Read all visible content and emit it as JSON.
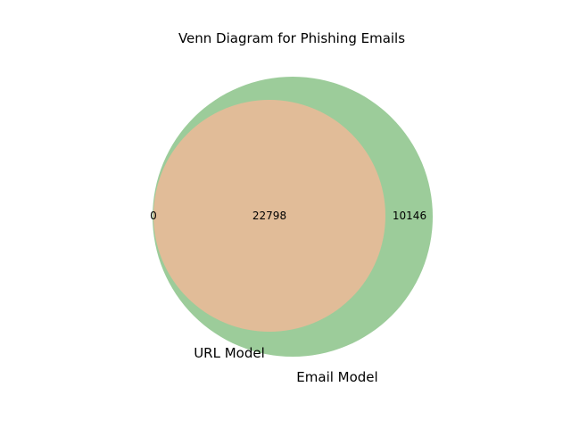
{
  "title": "Venn Diagram for Phishing Emails",
  "sets": [
    {
      "name": "URL Model",
      "only_count": "0",
      "color": "#e1bc98"
    },
    {
      "name": "Email Model",
      "only_count": "10146",
      "color": "#9ccc9a"
    }
  ],
  "intersection_count": "22798"
}
